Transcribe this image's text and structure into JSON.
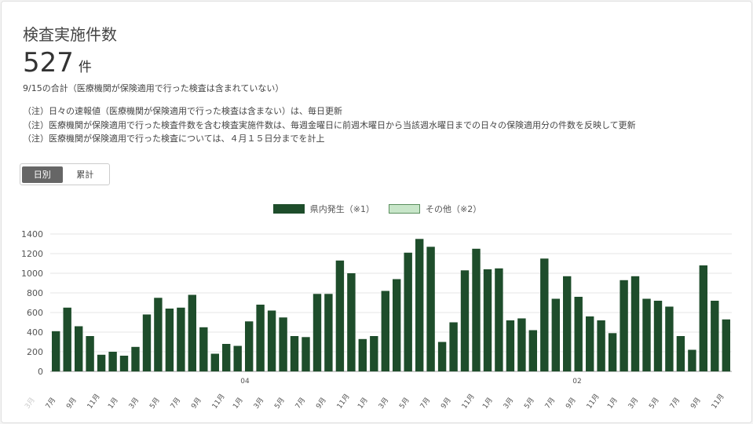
{
  "title": "検査実施件数",
  "total": {
    "value": "527",
    "unit": "件"
  },
  "subtitle": "9/15の合計（医療機関が保険適用で行った検査は含まれていない）",
  "notes": [
    "（注）日々の速報値（医療機関が保険適用で行った検査は含まない）は、毎日更新",
    "（注）医療機関が保険適用で行った検査件数を含む検査実施件数は、毎週金曜日に前週木曜日から当該週水曜日までの日々の保険適用分の件数を反映して更新",
    "（注）医療機関が保険適用で行った検査については、４月１５日分までを計上"
  ],
  "toggle": {
    "daily": "日別",
    "cumulative": "累計",
    "selected": "daily"
  },
  "chart_data": {
    "type": "bar",
    "series": [
      {
        "name": "県内発生（※1）",
        "color": "#1e4d2b",
        "values": [
          410,
          650,
          460,
          360,
          170,
          200,
          160,
          250,
          580,
          750,
          640,
          650,
          780,
          450,
          180,
          280,
          260,
          510,
          680,
          620,
          550,
          360,
          350,
          790,
          790,
          1130,
          1000,
          330,
          360,
          820,
          940,
          1210,
          1350,
          1270,
          300,
          500,
          1030,
          1250,
          1040,
          1050,
          520,
          540,
          420,
          1150,
          740,
          970,
          760,
          560,
          520,
          390,
          930,
          970,
          740,
          720,
          660,
          360,
          220,
          1080,
          720,
          530
        ]
      },
      {
        "name": "その他（※2）",
        "color": "#c8e6c9",
        "values": []
      }
    ],
    "ylim": [
      0,
      1400
    ],
    "yticks": [
      0,
      200,
      400,
      600,
      800,
      1000,
      1200,
      1400
    ],
    "x_tick_labels": [
      "3月",
      "7月",
      "9月",
      "11月",
      "1月",
      "3月",
      "5月",
      "7月",
      "9月",
      "11月",
      "1月",
      "3月",
      "5月",
      "7月",
      "9月",
      "11月",
      "1月",
      "3月",
      "5月",
      "7月",
      "9月",
      "11月",
      "1月",
      "3月",
      "5月",
      "7月",
      "9月",
      "11月",
      "1月",
      "3月",
      "5月",
      "7月",
      "9月",
      "11月"
    ],
    "x_group_labels": [
      "04",
      "02"
    ],
    "grid": true,
    "legend": "top-center"
  }
}
